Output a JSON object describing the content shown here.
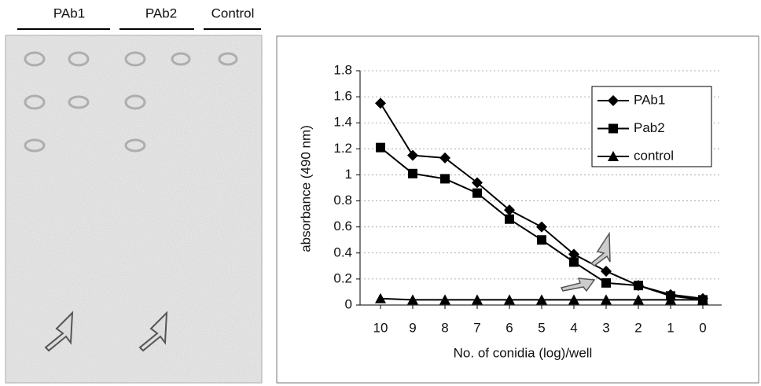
{
  "image_panel": {
    "labels": [
      "PAb1",
      "PAb2",
      "Control"
    ]
  },
  "chart_data": {
    "type": "line",
    "y_label": "absorbance (490 nm)",
    "x_label": "No. of conidia (log)/well",
    "categories": [
      "10",
      "9",
      "8",
      "7",
      "6",
      "5",
      "4",
      "3",
      "2",
      "1",
      "0"
    ],
    "series": [
      {
        "name": "PAb1",
        "color": "#000000",
        "marker": "diamond",
        "values": [
          1.55,
          1.15,
          1.13,
          0.94,
          0.73,
          0.6,
          0.39,
          0.26,
          0.15,
          0.08,
          0.05
        ]
      },
      {
        "name": "Pab2",
        "color": "#000000",
        "marker": "square",
        "values": [
          1.21,
          1.01,
          0.97,
          0.86,
          0.66,
          0.5,
          0.33,
          0.17,
          0.15,
          0.07,
          0.04
        ]
      },
      {
        "name": "control",
        "color": "#000000",
        "marker": "triangle",
        "values": [
          0.05,
          0.04,
          0.04,
          0.04,
          0.04,
          0.04,
          0.04,
          0.04,
          0.04,
          0.04,
          0.04
        ]
      }
    ],
    "ylim": [
      0,
      1.8
    ],
    "yticks": [
      0,
      0.2,
      0.4,
      0.6,
      0.8,
      1,
      1.2,
      1.4,
      1.6,
      1.8
    ],
    "grid": true,
    "legend": "upper-right"
  }
}
